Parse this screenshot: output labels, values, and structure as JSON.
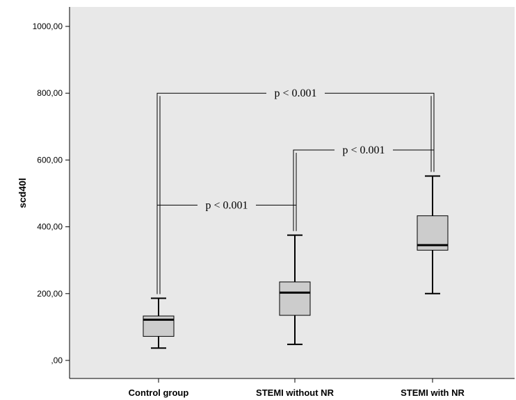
{
  "chart_data": {
    "type": "boxplot",
    "ylabel": "scd40l",
    "xlabel": "",
    "title": "",
    "ylim": [
      -55,
      1060
    ],
    "y_ticks": [
      {
        "value": 0,
        "label": ",00"
      },
      {
        "value": 200,
        "label": "200,00"
      },
      {
        "value": 400,
        "label": "400,00"
      },
      {
        "value": 600,
        "label": "600,00"
      },
      {
        "value": 800,
        "label": "800,00"
      },
      {
        "value": 1000,
        "label": "1000,00"
      }
    ],
    "categories": [
      "Control group",
      "STEMI without NR",
      "STEMI with NR"
    ],
    "boxes": [
      {
        "category": "Control group",
        "min": 37,
        "q1": 72,
        "median": 122,
        "q3": 133,
        "max": 186
      },
      {
        "category": "STEMI without NR",
        "min": 48,
        "q1": 135,
        "median": 203,
        "q3": 235,
        "max": 375
      },
      {
        "category": "STEMI with NR",
        "min": 200,
        "q1": 330,
        "median": 345,
        "q3": 433,
        "max": 552
      }
    ],
    "annotations": [
      {
        "from": "Control group",
        "to": "STEMI with NR",
        "level": 800,
        "text": "p < 0.001"
      },
      {
        "from": "STEMI without NR",
        "to": "STEMI with NR",
        "level": 630,
        "text": "p < 0.001"
      },
      {
        "from": "Control group",
        "to": "STEMI without NR",
        "level": 465,
        "text": "p < 0.001"
      }
    ],
    "grid": false,
    "colors": {
      "plot_background": "#e8e8e8",
      "box_fill": "#cccccc",
      "line": "#000000"
    }
  }
}
